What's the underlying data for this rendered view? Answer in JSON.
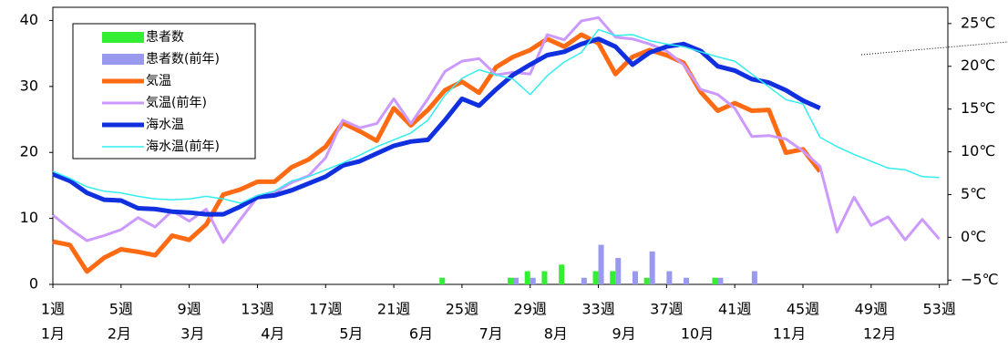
{
  "chart_data": {
    "type": "combo",
    "x": [
      1,
      2,
      3,
      4,
      5,
      6,
      7,
      8,
      9,
      10,
      11,
      12,
      13,
      14,
      15,
      16,
      17,
      18,
      19,
      20,
      21,
      22,
      23,
      24,
      25,
      26,
      27,
      28,
      29,
      30,
      31,
      32,
      33,
      34,
      35,
      36,
      37,
      38,
      39,
      40,
      41,
      42,
      43,
      44,
      45,
      46,
      47,
      48,
      49,
      50,
      51,
      52,
      53
    ],
    "xlim": [
      1,
      53.5
    ],
    "xticks": [
      {
        "value": 1,
        "label": "1週"
      },
      {
        "value": 5,
        "label": "5週"
      },
      {
        "value": 9,
        "label": "9週"
      },
      {
        "value": 13,
        "label": "13週"
      },
      {
        "value": 17,
        "label": "17週"
      },
      {
        "value": 21,
        "label": "21週"
      },
      {
        "value": 25,
        "label": "25週"
      },
      {
        "value": 29,
        "label": "29週"
      },
      {
        "value": 33,
        "label": "33週"
      },
      {
        "value": 37,
        "label": "37週"
      },
      {
        "value": 41,
        "label": "41週"
      },
      {
        "value": 45,
        "label": "45週"
      },
      {
        "value": 49,
        "label": "49週"
      },
      {
        "value": 53,
        "label": "53週"
      }
    ],
    "month_labels": [
      "1月",
      "2月",
      "3月",
      "4月",
      "5月",
      "6月",
      "7月",
      "8月",
      "9月",
      "10月",
      "11月",
      "12月"
    ],
    "ylim": [
      0,
      42
    ],
    "yticks": [
      0,
      10,
      20,
      30,
      40
    ],
    "y2lim": [
      -5.5,
      26.9
    ],
    "y2ticks": [
      {
        "value": -5,
        "label": "−5℃"
      },
      {
        "value": 0,
        "label": "0℃"
      },
      {
        "value": 5,
        "label": "5℃"
      },
      {
        "value": 10,
        "label": "10℃"
      },
      {
        "value": 15,
        "label": "15℃"
      },
      {
        "value": 20,
        "label": "20℃"
      },
      {
        "value": 25,
        "label": "25℃"
      }
    ],
    "series": [
      {
        "name": "患者数",
        "type": "bar",
        "color": "#33ee33",
        "values": [
          null,
          null,
          null,
          null,
          null,
          null,
          null,
          null,
          null,
          null,
          null,
          null,
          null,
          null,
          null,
          null,
          null,
          null,
          null,
          null,
          null,
          null,
          null,
          1,
          null,
          null,
          null,
          1,
          2,
          2,
          3,
          null,
          2,
          2,
          null,
          1,
          null,
          null,
          null,
          1,
          null,
          null,
          null,
          null,
          null,
          null,
          null,
          null,
          null,
          null,
          null,
          null,
          null
        ]
      },
      {
        "name": "患者数(前年)",
        "type": "bar",
        "color": "#9999ee",
        "values": [
          null,
          null,
          null,
          null,
          null,
          null,
          null,
          null,
          null,
          null,
          null,
          null,
          null,
          null,
          null,
          null,
          null,
          null,
          null,
          null,
          null,
          null,
          null,
          null,
          null,
          null,
          null,
          1,
          1,
          null,
          null,
          1,
          6,
          4,
          2,
          5,
          2,
          1,
          null,
          1,
          null,
          2,
          null,
          null,
          null,
          null,
          null,
          null,
          null,
          null,
          null,
          null,
          null
        ]
      },
      {
        "name": "気温",
        "type": "line",
        "axis": "y2",
        "color": "#ff6a13",
        "width": 5,
        "values": [
          -0.5,
          -0.9,
          -4,
          -2.4,
          -1.4,
          -1.7,
          -2.1,
          0.2,
          -0.3,
          1.5,
          5,
          5.6,
          6.5,
          6.5,
          8.2,
          9.1,
          10.6,
          13.4,
          12.4,
          11.3,
          15.1,
          13.1,
          14.9,
          17.2,
          18.2,
          16.9,
          19.9,
          21.1,
          21.9,
          23.2,
          22.3,
          23.7,
          22.7,
          19.1,
          21.1,
          21.9,
          21.3,
          20.4,
          17,
          14.8,
          15.7,
          14.8,
          14.9,
          9.9,
          10.3,
          7.7,
          null,
          null,
          null,
          null,
          null,
          null,
          null
        ]
      },
      {
        "name": "気温(前年)",
        "type": "line",
        "axis": "y2",
        "color": "#cc99ff",
        "width": 3,
        "values": [
          2.6,
          1,
          -0.4,
          0.2,
          0.9,
          2.3,
          1.2,
          3.1,
          1.9,
          3.3,
          -0.6,
          2.1,
          4.7,
          5.2,
          6.4,
          7.2,
          9.3,
          13.7,
          12.8,
          13.3,
          16.2,
          13.3,
          16.2,
          19.4,
          20.6,
          20.9,
          19,
          19.3,
          19.1,
          23.7,
          23.1,
          25.3,
          25.7,
          23.4,
          23.2,
          22.6,
          21.8,
          20.2,
          17.3,
          16.7,
          15.1,
          11.8,
          11.9,
          11.5,
          10.1,
          8.3,
          0.6,
          4.7,
          1.4,
          2.4,
          -0.3,
          2.1,
          -0.2
        ]
      },
      {
        "name": "海水温",
        "type": "line",
        "axis": "y2",
        "color": "#1030e0",
        "width": 5,
        "values": [
          7.4,
          6.6,
          5.2,
          4.4,
          4.3,
          3.4,
          3.3,
          3,
          2.9,
          2.7,
          2.7,
          3.6,
          4.7,
          4.9,
          5.5,
          6.3,
          7.1,
          8.4,
          8.9,
          9.8,
          10.7,
          11.2,
          11.4,
          13.7,
          16.2,
          15.4,
          17.3,
          19,
          20.2,
          21.3,
          21.7,
          22.6,
          23.2,
          22.3,
          20.2,
          21.6,
          22.3,
          22.6,
          21.8,
          20,
          19.5,
          18.5,
          18.1,
          17.2,
          16,
          15.1,
          null,
          null,
          null,
          null,
          null,
          null,
          null
        ]
      },
      {
        "name": "海水温(前年)",
        "type": "line",
        "axis": "y2",
        "color": "#33eeee",
        "width": 1.5,
        "values": [
          7.7,
          6.9,
          5.9,
          5.4,
          5.2,
          4.8,
          4.5,
          4.4,
          4.5,
          4.8,
          4.5,
          4,
          4.9,
          5.4,
          6.6,
          7.1,
          7.9,
          8.7,
          9.6,
          10.6,
          11.4,
          12.2,
          13.7,
          16.6,
          18.6,
          19.6,
          19,
          18.5,
          16.7,
          18.9,
          20.5,
          21.6,
          24.3,
          23.6,
          23.7,
          23,
          22.6,
          22.3,
          21.7,
          21.1,
          20.6,
          19.1,
          17.6,
          16.1,
          15.6,
          11.7,
          10.6,
          9.7,
          8.9,
          8.1,
          7.9,
          7.1,
          7
        ]
      }
    ]
  }
}
